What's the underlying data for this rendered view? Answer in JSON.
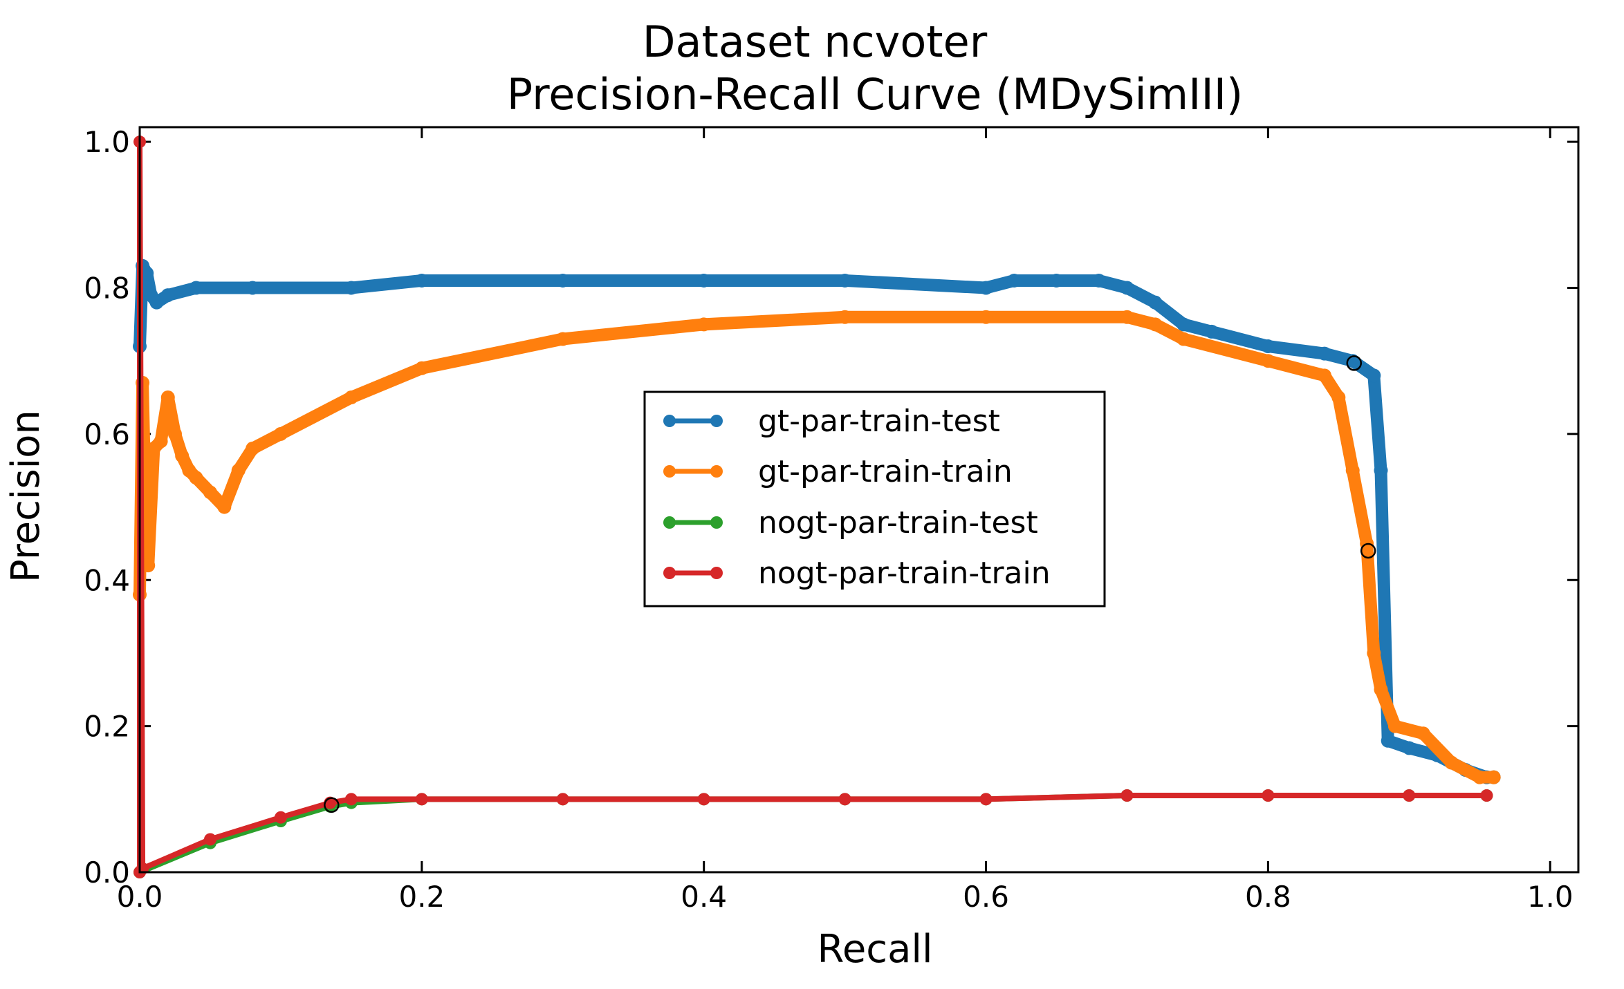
{
  "chart_data": {
    "type": "line",
    "title_line1": "Dataset ncvoter",
    "title_line2": "Precision-Recall Curve (MDySimIII)",
    "xlabel": "Recall",
    "ylabel": "Precision",
    "xlim": [
      0.0,
      1.02
    ],
    "ylim": [
      0.0,
      1.02
    ],
    "x_ticks": [
      "0.0",
      "0.2",
      "0.4",
      "0.6",
      "0.8",
      "1.0"
    ],
    "y_ticks": [
      "0.0",
      "0.2",
      "0.4",
      "0.6",
      "0.8",
      "1.0"
    ],
    "legend_position": "center",
    "grid": false,
    "series": [
      {
        "name": "gt-par-train-test",
        "color": "#1f77b4",
        "x": [
          0.0,
          0.002,
          0.005,
          0.008,
          0.012,
          0.02,
          0.04,
          0.08,
          0.15,
          0.2,
          0.3,
          0.4,
          0.5,
          0.6,
          0.62,
          0.65,
          0.68,
          0.7,
          0.72,
          0.74,
          0.76,
          0.8,
          0.84,
          0.86,
          0.875,
          0.88,
          0.885,
          0.9,
          0.92,
          0.94,
          0.955,
          0.96
        ],
        "y": [
          0.72,
          0.83,
          0.82,
          0.79,
          0.78,
          0.79,
          0.8,
          0.8,
          0.8,
          0.81,
          0.81,
          0.81,
          0.81,
          0.8,
          0.81,
          0.81,
          0.81,
          0.8,
          0.78,
          0.75,
          0.74,
          0.72,
          0.71,
          0.7,
          0.68,
          0.55,
          0.18,
          0.17,
          0.16,
          0.14,
          0.13,
          0.13
        ]
      },
      {
        "name": "gt-par-train-train",
        "color": "#ff7f0e",
        "x": [
          0.0,
          0.002,
          0.004,
          0.006,
          0.01,
          0.015,
          0.02,
          0.025,
          0.03,
          0.035,
          0.04,
          0.05,
          0.06,
          0.07,
          0.08,
          0.1,
          0.15,
          0.2,
          0.3,
          0.4,
          0.5,
          0.6,
          0.7,
          0.72,
          0.74,
          0.8,
          0.84,
          0.85,
          0.86,
          0.87,
          0.875,
          0.88,
          0.89,
          0.91,
          0.93,
          0.95,
          0.96
        ],
        "y": [
          0.38,
          0.67,
          0.5,
          0.42,
          0.58,
          0.59,
          0.65,
          0.6,
          0.57,
          0.55,
          0.54,
          0.52,
          0.5,
          0.55,
          0.58,
          0.6,
          0.65,
          0.69,
          0.73,
          0.75,
          0.76,
          0.76,
          0.76,
          0.75,
          0.73,
          0.7,
          0.68,
          0.65,
          0.55,
          0.45,
          0.3,
          0.25,
          0.2,
          0.19,
          0.15,
          0.13,
          0.13
        ]
      },
      {
        "name": "nogt-par-train-test",
        "color": "#2ca02c",
        "x": [
          0.0,
          0.05,
          0.1,
          0.135,
          0.15,
          0.2,
          0.3,
          0.4,
          0.5,
          0.6,
          0.7,
          0.8,
          0.9,
          0.955
        ],
        "y": [
          0.0,
          0.04,
          0.07,
          0.09,
          0.095,
          0.1,
          0.1,
          0.1,
          0.1,
          0.1,
          0.105,
          0.105,
          0.105,
          0.105
        ]
      },
      {
        "name": "nogt-par-train-train",
        "color": "#d62728",
        "x": [
          0.0,
          0.0,
          0.002,
          0.05,
          0.1,
          0.135,
          0.15,
          0.2,
          0.3,
          0.4,
          0.5,
          0.6,
          0.7,
          0.8,
          0.9,
          0.955
        ],
        "y": [
          0.0,
          1.0,
          0.005,
          0.045,
          0.075,
          0.095,
          0.1,
          0.1,
          0.1,
          0.1,
          0.1,
          0.1,
          0.105,
          0.105,
          0.105,
          0.105
        ]
      }
    ],
    "highlight_points": [
      {
        "x": 0.861,
        "y": 0.697
      },
      {
        "x": 0.871,
        "y": 0.44
      },
      {
        "x": 0.136,
        "y": 0.092
      }
    ]
  }
}
